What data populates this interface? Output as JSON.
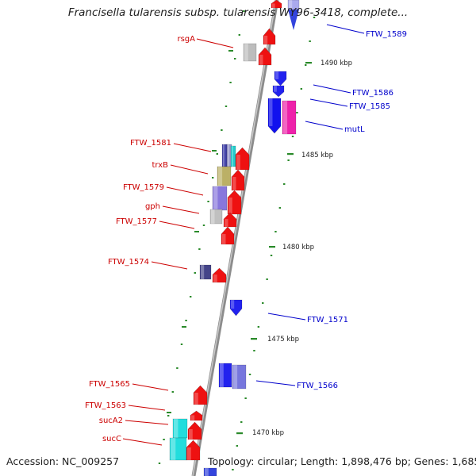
{
  "title": "Francisella tularensis subsp. tularensis WY96-3418, complete...",
  "footer": {
    "accession": "Accession: NC_009257",
    "summary": "Topology: circular; Length: 1,898,476 bp; Genes: 1,685"
  },
  "colors": {
    "backbone": "#8c8c8c",
    "forward_label": "#cc0000",
    "reverse_label": "#0000cc",
    "tick": "#2a8a2a"
  },
  "scale_labels": [
    "1490 kbp",
    "1485 kbp",
    "1480 kbp",
    "1475 kbp",
    "1470 kbp"
  ],
  "genes": {
    "left": [
      "rsgA",
      "FTW_1581",
      "trxB",
      "FTW_1579",
      "gph",
      "FTW_1577",
      "FTW_1574",
      "FTW_1565",
      "FTW_1563",
      "sucA2",
      "sucC"
    ],
    "right": [
      "FTW_1589",
      "FTW_1586",
      "FTW_1585",
      "mutL",
      "FTW_1571",
      "FTW_1566"
    ]
  }
}
